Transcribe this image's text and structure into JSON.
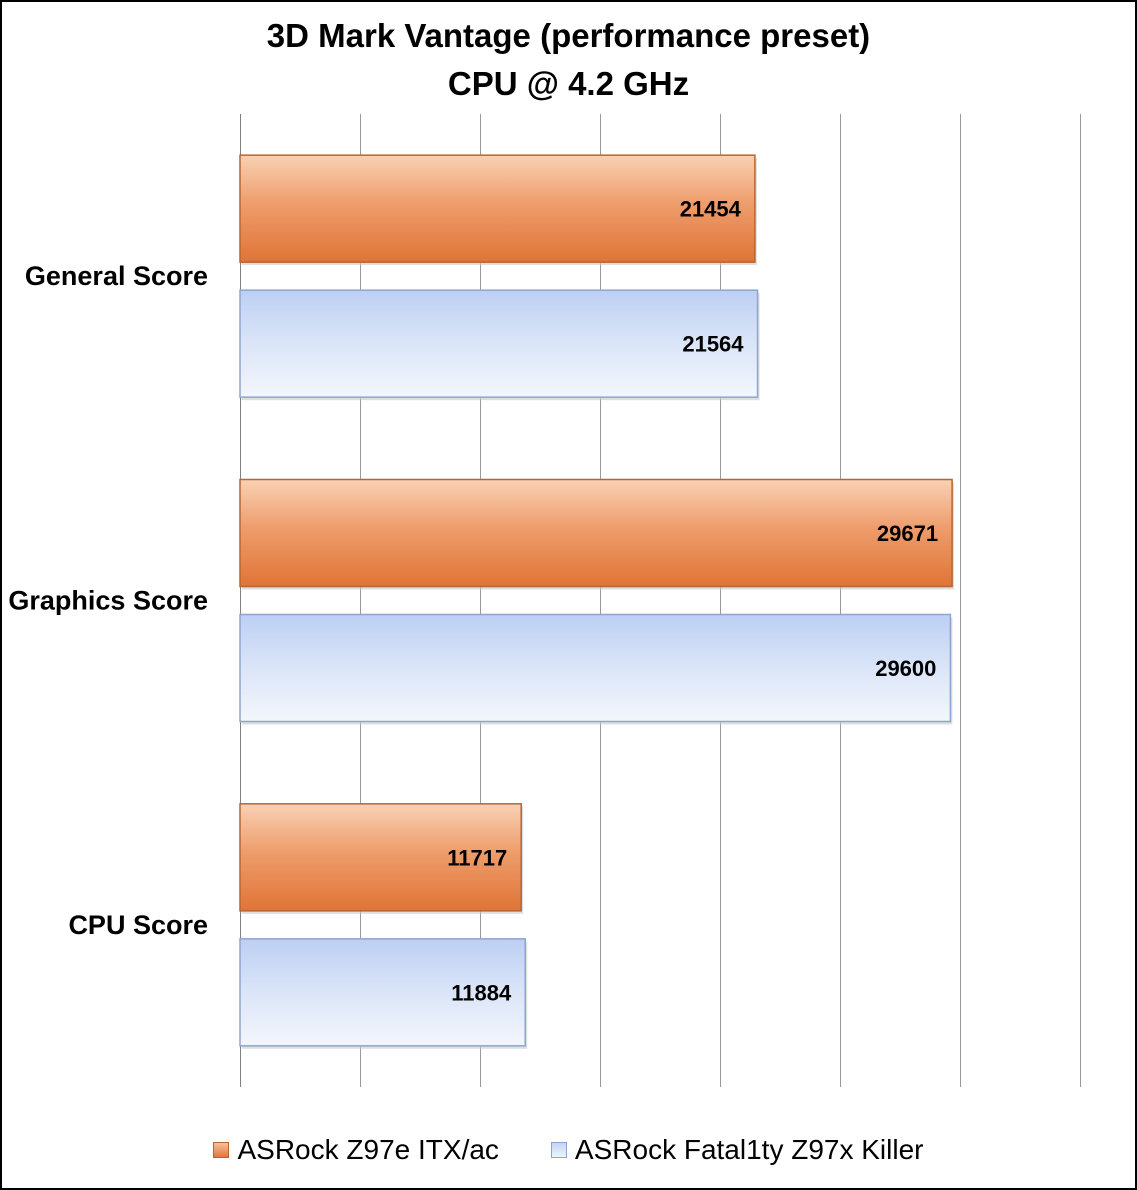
{
  "chart_data": {
    "type": "bar",
    "orientation": "horizontal",
    "title": "3D Mark Vantage (performance preset)",
    "subtitle": "CPU @ 4.2 GHz",
    "categories": [
      "General Score",
      "Graphics Score",
      "CPU Score"
    ],
    "series": [
      {
        "name": "ASRock Z97e ITX/ac",
        "values": [
          21454,
          29671,
          11717
        ],
        "color": "#e8874b"
      },
      {
        "name": "ASRock Fatal1ty Z97x Killer",
        "values": [
          21564,
          29600,
          11884
        ],
        "color": "#c9d8f5"
      }
    ],
    "xlim": [
      0,
      35000
    ],
    "x_gridlines": true,
    "x_tick_labels_shown": false,
    "legend_position": "bottom",
    "data_labels": true
  }
}
